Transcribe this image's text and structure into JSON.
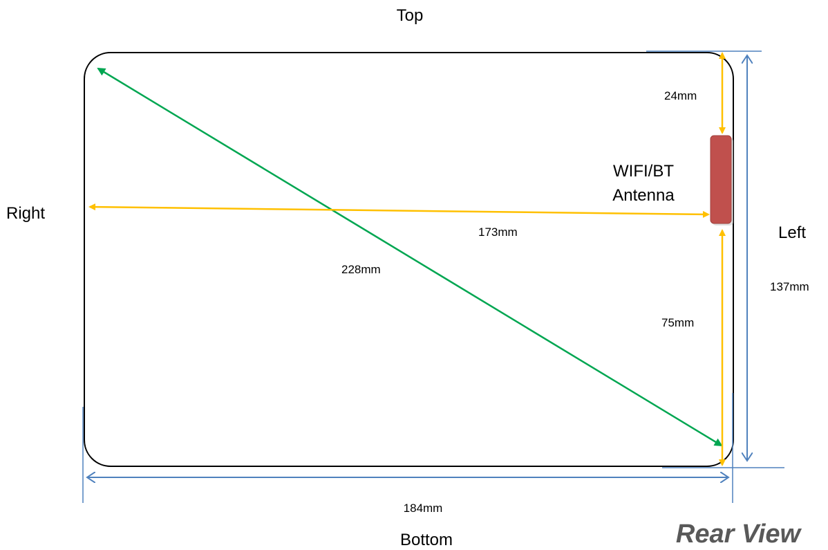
{
  "labels": {
    "top": "Top",
    "bottom": "Bottom",
    "right": "Right",
    "left": "Left",
    "view": "Rear View",
    "antenna_line1": "WIFI/BT",
    "antenna_line2": "Antenna"
  },
  "dimensions": {
    "top_to_antenna": "24mm",
    "antenna_to_bottom": "75mm",
    "antenna_to_right_edge": "173mm",
    "diagonal": "228mm",
    "height": "137mm",
    "width": "184mm"
  },
  "colors": {
    "outline": "#000000",
    "yellow_arrow": "#FFC000",
    "green_arrow": "#00A651",
    "blue_dimension": "#4F81BD",
    "antenna": "#C0504D",
    "antenna_stroke": "#A0403D"
  }
}
